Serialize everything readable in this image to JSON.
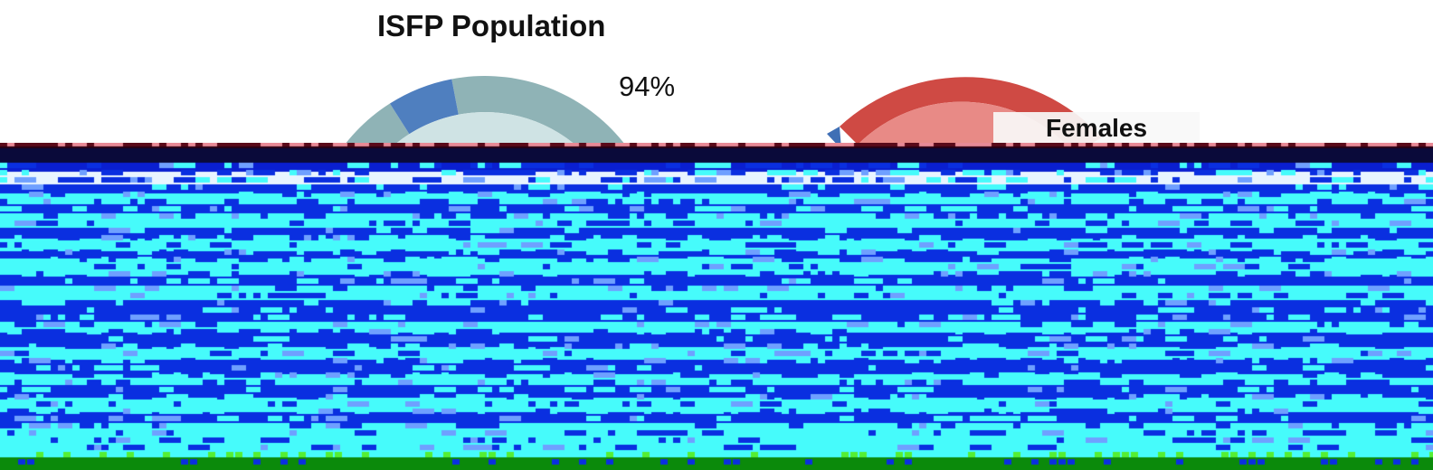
{
  "chart_data": {
    "type": "pie",
    "title": "ISFP Population",
    "slices": [
      {
        "label": "",
        "value": 94,
        "display": "94%",
        "color": "#8fb3b6"
      },
      {
        "label": "",
        "value": 6,
        "color": "#4f7fbf"
      }
    ],
    "secondary_pie": {
      "legend_entry": "Females",
      "color": "#cf4a44"
    }
  },
  "colors": {
    "background": "#ffffff",
    "teal_slice": "#8fb3b6",
    "red_slice": "#cf4a44",
    "glitch_blue": "#0a2fe0",
    "glitch_cyan": "#46fbfb",
    "glitch_green": "#0b8a0b",
    "glitch_dark": "#2a0014"
  }
}
